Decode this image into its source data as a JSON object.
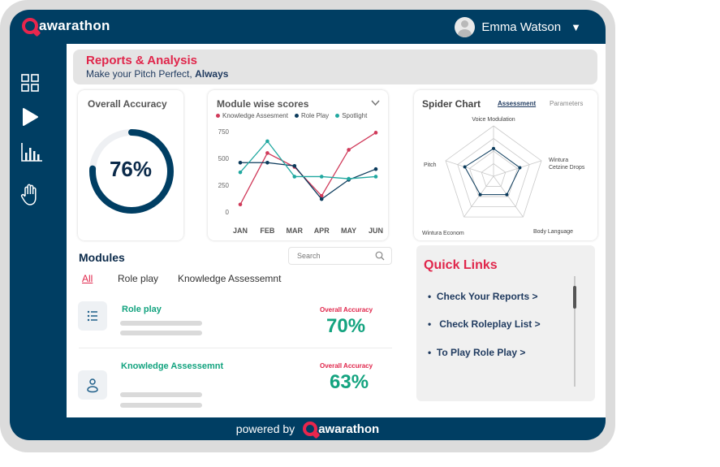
{
  "brand": {
    "name": "awarathon",
    "accent": "#e0264b",
    "nav_color": "#003e63"
  },
  "user": {
    "name": "Emma Watson",
    "menu_icon": "chevron-down-icon"
  },
  "sidebar": {
    "items": [
      {
        "icon": "grid-icon"
      },
      {
        "icon": "play-icon"
      },
      {
        "icon": "bar-chart-icon"
      },
      {
        "icon": "hand-icon"
      }
    ]
  },
  "header": {
    "title": "Reports & Analysis",
    "subtitle": "Make your Pitch Perfect, ",
    "subtitle_bold": "Always"
  },
  "overall_accuracy": {
    "title": "Overall Accuracy",
    "value_label": "76%",
    "value": 0.76
  },
  "module_scores": {
    "title": "Module wise scores",
    "chart_data": {
      "type": "line",
      "title": "Module wise scores",
      "categories": [
        "JAN",
        "FEB",
        "MAR",
        "APR",
        "MAY",
        "JUN"
      ],
      "yticks": [
        "750",
        "500",
        "250",
        "0"
      ],
      "ylim": [
        0,
        750
      ],
      "series": [
        {
          "name": "Knowledge Assesment",
          "color": "#d03a5a",
          "values": [
            70,
            550,
            420,
            150,
            580,
            740
          ]
        },
        {
          "name": "Role Play",
          "color": "#0b3b5c",
          "values": [
            460,
            460,
            430,
            120,
            300,
            400
          ]
        },
        {
          "name": "Spotlight",
          "color": "#21a8a0",
          "values": [
            370,
            660,
            330,
            330,
            310,
            330
          ]
        }
      ]
    }
  },
  "spider": {
    "title": "Spider Chart",
    "tab_active": "Assessment",
    "tab_other": "Parameters",
    "chart_data": {
      "type": "radar",
      "axes": [
        "Voice Modulation",
        "Wintura Cetzine Drops",
        "Body Language",
        "Wintura Econom",
        "Pitch"
      ],
      "values": [
        0.55,
        0.55,
        0.45,
        0.45,
        0.6
      ]
    }
  },
  "modules": {
    "title": "Modules",
    "search_placeholder": "Search",
    "filters": [
      "All",
      "Role play",
      "Knowledge Assessemnt"
    ],
    "items": [
      {
        "name": "Role play",
        "accuracy_label": "Overall Accuracy",
        "accuracy": "70%",
        "icon": "list-icon"
      },
      {
        "name": "Knowledge Assessemnt",
        "accuracy_label": "Overall Accuracy",
        "accuracy": "63%",
        "icon": "user-icon"
      }
    ]
  },
  "quick_links": {
    "title": "Quick Links",
    "items": [
      "Check Your Reports >",
      "Check Roleplay List >",
      "To Play Role Play >"
    ]
  },
  "footer": {
    "powered_by": "powered by",
    "brand": "awarathon"
  }
}
